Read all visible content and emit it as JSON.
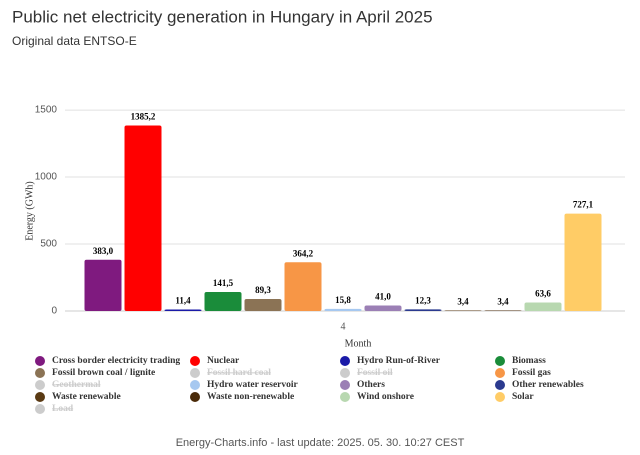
{
  "chart_data": {
    "type": "bar",
    "title": "Public net electricity generation in Hungary in April 2025",
    "subtitle": "Original data ENTSO-E",
    "y_label": "Energy (GWh)",
    "x_label": "Month",
    "categories": [
      "4"
    ],
    "ylim": [
      0,
      1650
    ],
    "yticks": [
      0,
      500,
      1000,
      1500
    ],
    "grid": true,
    "legend": "bottom",
    "footer": "Energy-Charts.info - last update: 2025. 05. 30. 10:27 CEST",
    "series": [
      {
        "name": "Cross border electricity trading",
        "color": "#7f1a7f",
        "values": [
          383.0
        ],
        "value_labels": [
          "383,0"
        ]
      },
      {
        "name": "Nuclear",
        "color": "#ff0000",
        "values": [
          1385.2
        ],
        "value_labels": [
          "1385,2"
        ]
      },
      {
        "name": "Hydro Run-of-River",
        "color": "#1a1aa8",
        "values": [
          11.4
        ],
        "value_labels": [
          "11,4"
        ]
      },
      {
        "name": "Biomass",
        "color": "#1a8c3a",
        "values": [
          141.5
        ],
        "value_labels": [
          "141,5"
        ]
      },
      {
        "name": "Fossil brown coal / lignite",
        "color": "#8b7355",
        "values": [
          89.3
        ],
        "value_labels": [
          "89,3"
        ]
      },
      {
        "name": "Fossil hard coal",
        "values": [
          null
        ],
        "hidden": true
      },
      {
        "name": "Fossil oil",
        "values": [
          null
        ],
        "hidden": true
      },
      {
        "name": "Fossil gas",
        "color": "#f79646",
        "values": [
          364.2
        ],
        "value_labels": [
          "364,2"
        ]
      },
      {
        "name": "Geothermal",
        "values": [
          null
        ],
        "hidden": true
      },
      {
        "name": "Hydro water reservoir",
        "color": "#a6c8f0",
        "values": [
          15.8
        ],
        "value_labels": [
          "15,8"
        ]
      },
      {
        "name": "Others",
        "color": "#9b7fb5",
        "values": [
          41.0
        ],
        "value_labels": [
          "41,0"
        ]
      },
      {
        "name": "Other renewables",
        "color": "#2b3a8f",
        "values": [
          12.3
        ],
        "value_labels": [
          "12,3"
        ]
      },
      {
        "name": "Waste renewable",
        "color": "#5a3a14",
        "values": [
          3.4
        ],
        "value_labels": [
          "3,4"
        ]
      },
      {
        "name": "Waste non-renewable",
        "color": "#4a2a08",
        "values": [
          3.4
        ],
        "value_labels": [
          "3,4"
        ]
      },
      {
        "name": "Wind onshore",
        "color": "#b8d8b0",
        "values": [
          63.6
        ],
        "value_labels": [
          "63,6"
        ]
      },
      {
        "name": "Solar",
        "color": "#ffcc66",
        "values": [
          727.1
        ],
        "value_labels": [
          "727,1"
        ]
      },
      {
        "name": "Load",
        "values": [
          null
        ],
        "hidden": true
      }
    ]
  }
}
